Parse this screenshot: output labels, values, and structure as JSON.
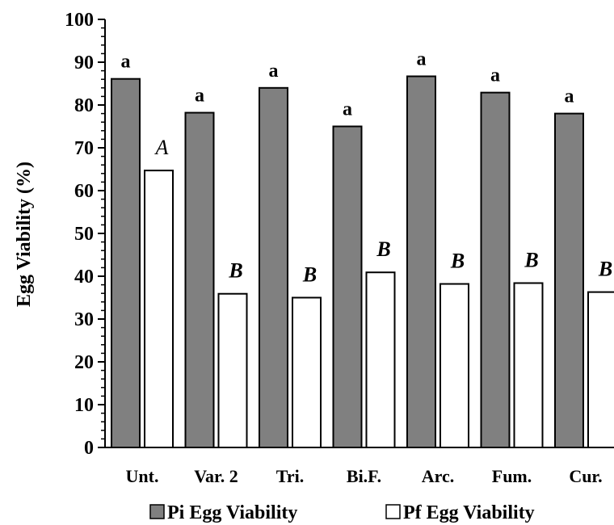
{
  "chart_data": {
    "type": "bar",
    "categories": [
      "Unt.",
      "Var. 2",
      "Tri.",
      "Bi.F.",
      "Arc.",
      "Fum.",
      "Cur."
    ],
    "series": [
      {
        "name": "Pi Egg Viability",
        "color": "#808080",
        "values": [
          86.1,
          78.2,
          84.0,
          75.0,
          86.7,
          82.9,
          78.0
        ],
        "labels": [
          "a",
          "a",
          "a",
          "a",
          "a",
          "a",
          "a"
        ]
      },
      {
        "name": "Pf Egg Viability",
        "color": "#ffffff",
        "values": [
          64.7,
          35.9,
          35.0,
          40.9,
          38.2,
          38.4,
          36.3
        ],
        "labels": [
          "A",
          "B",
          "B",
          "B",
          "B",
          "B",
          "B"
        ]
      }
    ],
    "xlabel": "",
    "ylabel": "Egg Viability (%)",
    "ylim": [
      0,
      100
    ],
    "yticks": [
      0,
      10,
      20,
      30,
      40,
      50,
      60,
      70,
      80,
      90,
      100
    ],
    "grid": false,
    "legend_position": "bottom"
  }
}
